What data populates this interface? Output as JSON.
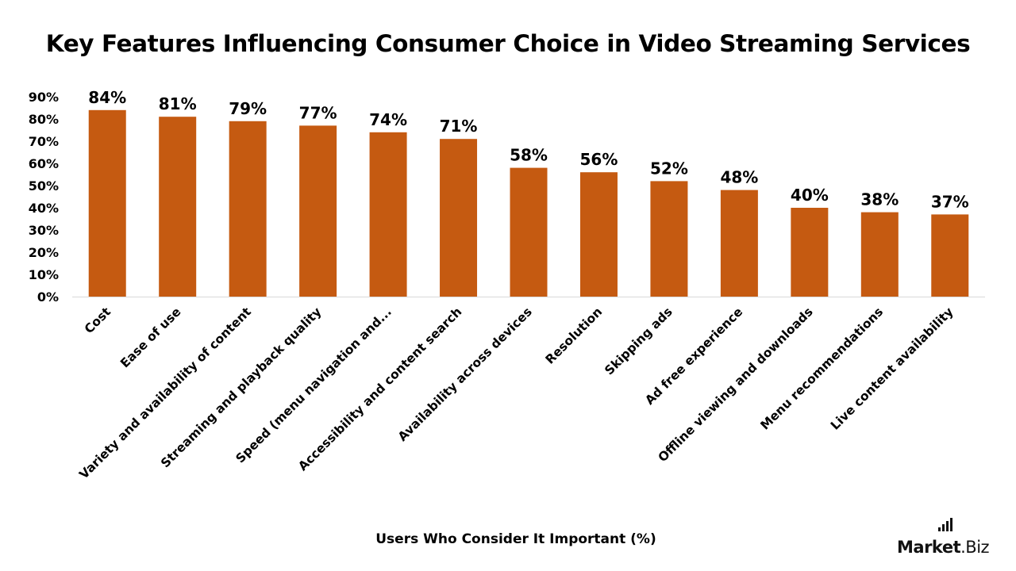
{
  "chart_data": {
    "type": "bar",
    "title": "Key Features Influencing Consumer Choice in Video Streaming Services",
    "xlabel": "Users Who Consider It Important (%)",
    "ylabel": "",
    "ylim": [
      0,
      90
    ],
    "yticks": [
      "0%",
      "10%",
      "20%",
      "30%",
      "40%",
      "50%",
      "60%",
      "70%",
      "80%",
      "90%"
    ],
    "grid": false,
    "bar_color": "#c55a11",
    "categories": [
      "Cost",
      "Ease of use",
      "Variety and availability of content",
      "Streaming and playback quality",
      "Speed (menu navigation and...",
      "Accessibility and content search",
      "Availability across devices",
      "Resolution",
      "Skipping ads",
      "Ad free experience",
      "Offline viewing and downloads",
      "Menu recommendations",
      "Live content availability"
    ],
    "values": [
      84,
      81,
      79,
      77,
      74,
      71,
      58,
      56,
      52,
      48,
      40,
      38,
      37
    ],
    "value_labels": [
      "84%",
      "81%",
      "79%",
      "77%",
      "74%",
      "71%",
      "58%",
      "56%",
      "52%",
      "48%",
      "40%",
      "38%",
      "37%"
    ]
  },
  "brand": {
    "name_bold": "Market",
    "name_rest": ".Biz"
  }
}
